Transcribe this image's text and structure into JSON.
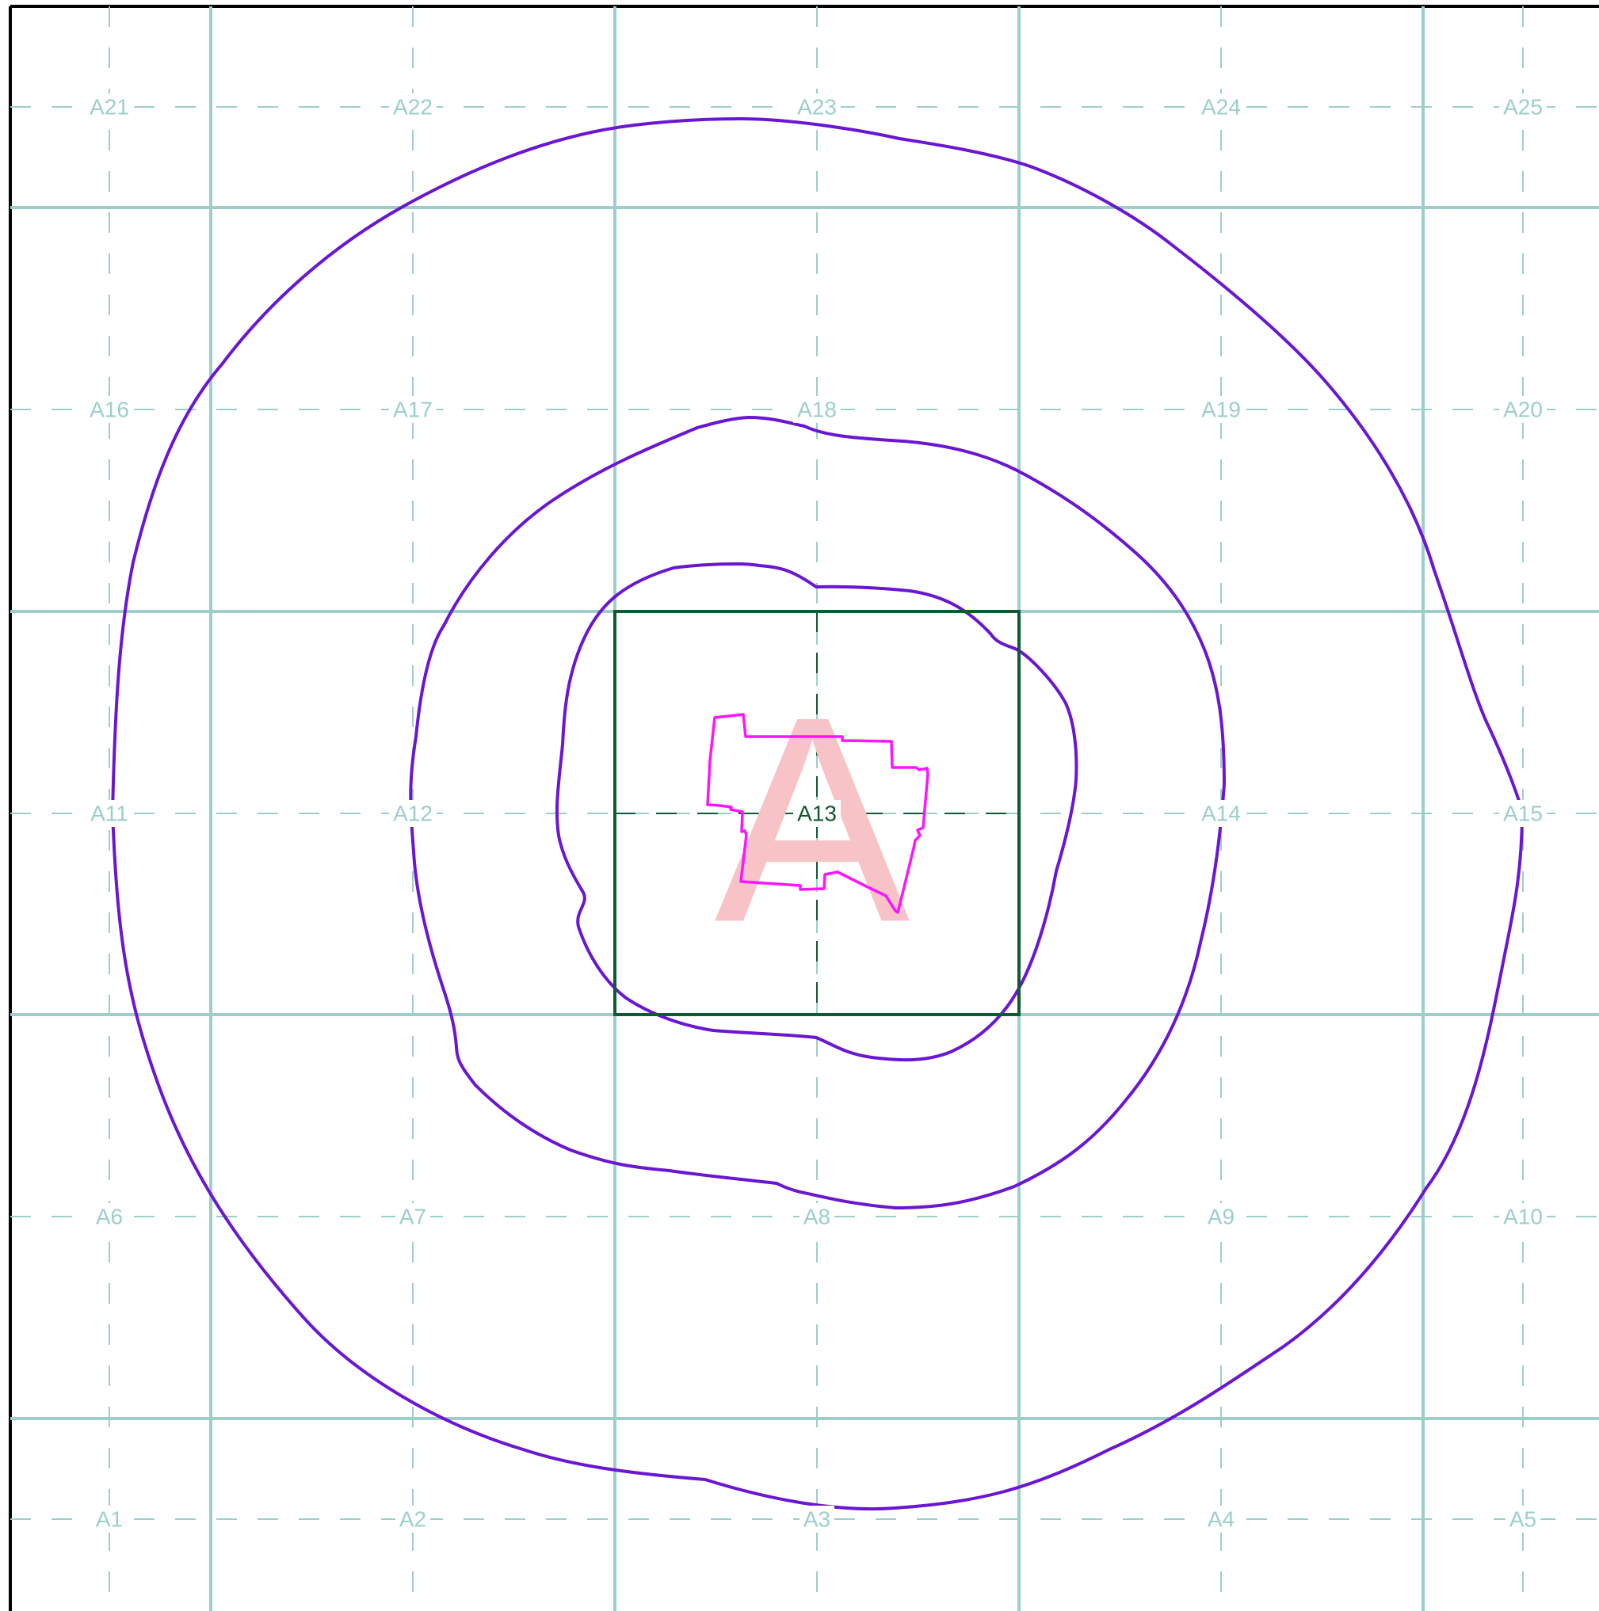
{
  "map": {
    "grid": {
      "rows": [
        [
          "A21",
          "A22",
          "A23",
          "A24",
          "A25"
        ],
        [
          "A16",
          "A17",
          "A18",
          "A19",
          "A20"
        ],
        [
          "A11",
          "A12",
          "A13",
          "A14",
          "A15"
        ],
        [
          "A6",
          "A7",
          "A8",
          "A9",
          "A10"
        ],
        [
          "A1",
          "A2",
          "A3",
          "A4",
          "A5"
        ]
      ],
      "active_cell": "A13"
    },
    "site_marker": "A",
    "contour_rings": 3,
    "colors": {
      "grid_line": "#9ccfcb",
      "grid_label": "#9ccfcb",
      "active_cell_border": "#0f5a32",
      "active_cell_label": "#0f5a32",
      "contour": "#6a16d2",
      "site_boundary": "#ff14ff",
      "site_marker": "#f8c3c6",
      "frame": "#000000"
    }
  }
}
